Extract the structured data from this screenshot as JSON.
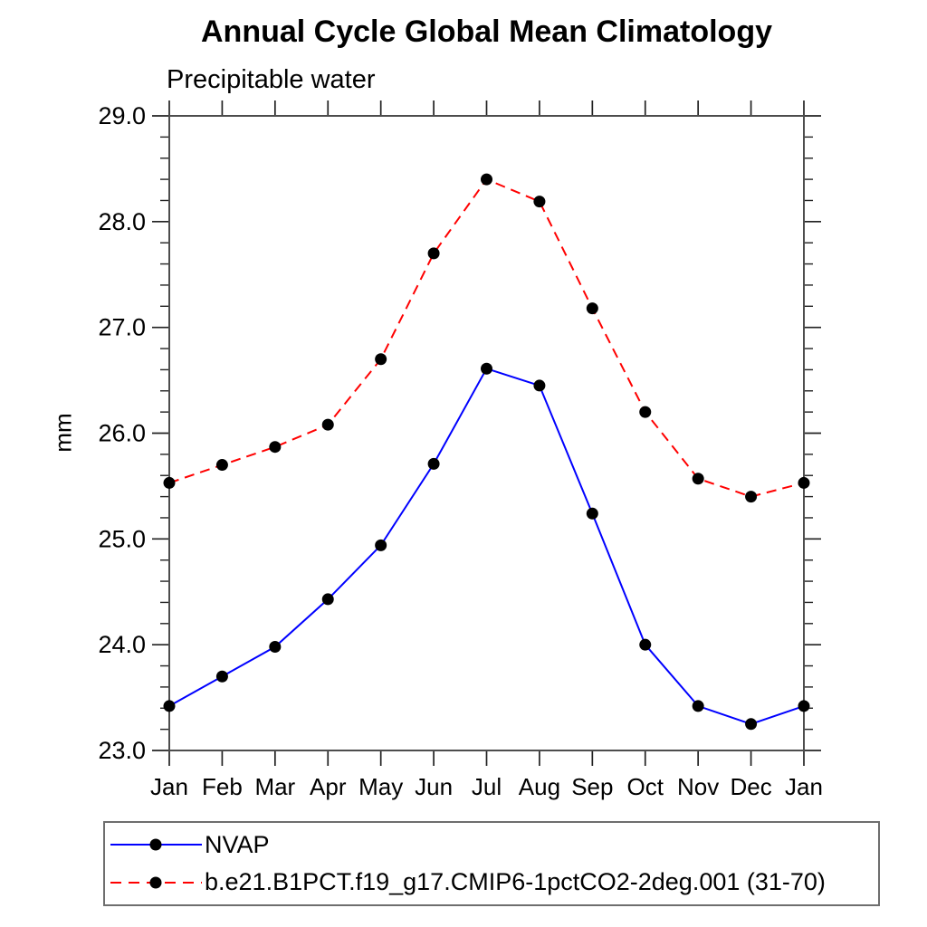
{
  "title": "Annual Cycle Global Mean Climatology",
  "chart_data": {
    "type": "line",
    "title": "Annual Cycle Global Mean Climatology",
    "subtitle": "Precipitable water",
    "ylabel": "mm",
    "xlabel": "",
    "categories": [
      "Jan",
      "Feb",
      "Mar",
      "Apr",
      "May",
      "Jun",
      "Jul",
      "Aug",
      "Sep",
      "Oct",
      "Nov",
      "Dec",
      "Jan"
    ],
    "ylim": [
      23.0,
      29.0
    ],
    "ytick_labels": [
      "23.0",
      "24.0",
      "25.0",
      "26.0",
      "27.0",
      "28.0",
      "29.0"
    ],
    "ytick_values": [
      23.0,
      24.0,
      25.0,
      26.0,
      27.0,
      28.0,
      29.0
    ],
    "y_minor_step": 0.2,
    "grid": false,
    "legend_position": "bottom-left",
    "marker": "filled-circle",
    "marker_color": "#000000",
    "frame_color": "#4d4d4d",
    "tick_color": "#222222",
    "series": [
      {
        "key": "nvap",
        "name": "NVAP",
        "color": "#0000ff",
        "line_style": "solid",
        "values": [
          23.42,
          23.7,
          23.98,
          24.43,
          24.94,
          25.71,
          26.61,
          26.45,
          25.24,
          24.0,
          23.42,
          23.25,
          23.42
        ]
      },
      {
        "key": "model",
        "name": "b.e21.B1PCT.f19_g17.CMIP6-1pctCO2-2deg.001 (31-70)",
        "color": "#ff0000",
        "line_style": "dashed",
        "values": [
          25.53,
          25.7,
          25.87,
          26.08,
          26.7,
          27.7,
          28.4,
          28.19,
          27.18,
          26.2,
          25.57,
          25.4,
          25.53
        ]
      }
    ]
  }
}
